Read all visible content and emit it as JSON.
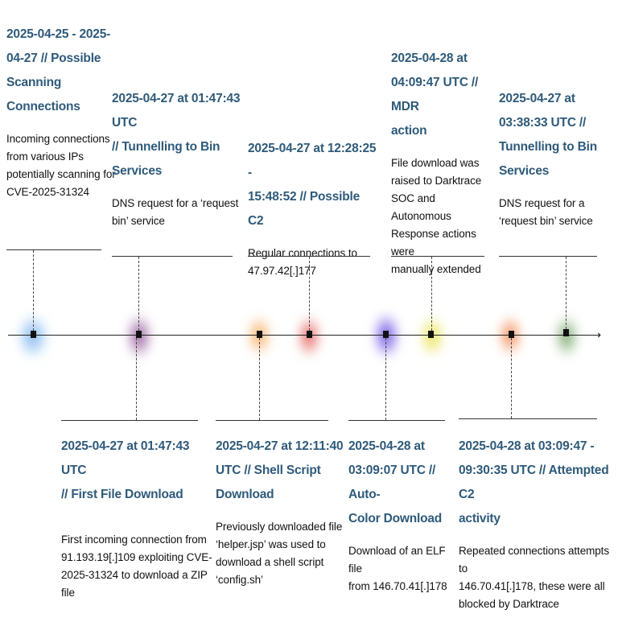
{
  "colors": {
    "title": "#2e5a7a",
    "text": "#111111",
    "line": "#333333"
  },
  "timeline": {
    "above": [
      {
        "id": "possible-scanning",
        "title": "2025-04-25 - 2025-\n04-27  // Possible\nScanning\nConnections",
        "description": "Incoming connections\nfrom various IPs\npotentially scanning for\nCVE-2025-31324"
      },
      {
        "id": "tunnelling-1",
        "title": "2025-04-27 at 01:47:43\nUTC\n // Tunnelling to Bin\nServices",
        "description": "DNS request for a ‘request\nbin’ service"
      },
      {
        "id": "possible-c2",
        "title": "2025-04-27 at 12:28:25 -\n15:48:52  // Possible C2",
        "description": "Regular connections to\n47.97.42[.]177"
      },
      {
        "id": "mdr-action",
        "title": "2025-04-28 at\n04:09:47 UTC // MDR\naction",
        "description": "File download was\nraised to Darktrace\nSOC and Autonomous\nResponse actions were\nmanually extended"
      },
      {
        "id": "tunnelling-2",
        "title": "2025-04-27 at\n03:38:33 UTC //\nTunnelling to Bin\nServices",
        "description": "DNS request for a\n‘request bin’ service"
      }
    ],
    "below": [
      {
        "id": "first-file-download",
        "title": "2025-04-27 at 01:47:43 UTC\n // First File Download",
        "description": "First incoming connection from\n91.193.19[.]109 exploiting CVE-\n2025-31324 to download a ZIP file"
      },
      {
        "id": "shell-script-download",
        "title": "2025-04-27 at 12:11:40\nUTC  // Shell Script\nDownload",
        "description": "Previously downloaded file\n‘helper.jsp’ was used to\ndownload a shell script\n‘config.sh’"
      },
      {
        "id": "auto-color-download",
        "title": "2025-04-28 at\n03:09:07 UTC // Auto-\nColor Download",
        "description": "Download of an ELF file\nfrom 146.70.41[.]178"
      },
      {
        "id": "attempted-c2",
        "title": "2025-04-28 at 03:09:47 -\n09:30:35 UTC  // Attempted C2\nactivity",
        "description": "Repeated connections attempts to\n146.70.41[.]178, these were all\nblocked by Darktrace"
      }
    ],
    "glows": [
      "#7ab4f0",
      "#8a4a90",
      "#f4a04a",
      "#e0504a",
      "#6040e0",
      "#e8e040",
      "#f07a3a",
      "#6a9a5a"
    ]
  }
}
